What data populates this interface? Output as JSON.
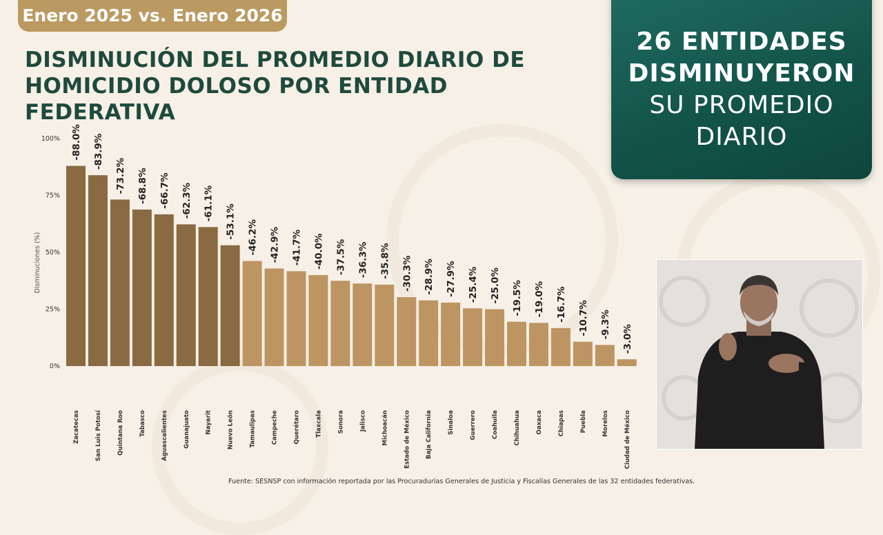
{
  "header": {
    "date_label": "Enero 2025 vs. Enero 2026",
    "title_line1": "DISMINUCIÓN DEL PROMEDIO DIARIO DE",
    "title_line2": "HOMICIDIO DOLOSO POR ENTIDAD FEDERATIVA"
  },
  "banner": {
    "line1": "26 ENTIDADES",
    "line2": "DISMINUYERON",
    "line3": "SU PROMEDIO",
    "line4": "DIARIO"
  },
  "footer": {
    "source": "Fuente: SESNSP con información reportada por las Procuradurías Generales de Justicia y Fiscalías Generales de las 32 entidades federativas."
  },
  "colors": {
    "dark_bar": "#8a6a42",
    "light_bar": "#bd9563",
    "title_green": "#1f4a3d",
    "banner_green": "#125248",
    "pill_gold": "#bb9a62"
  },
  "chart_data": {
    "type": "bar",
    "title": "DISMINUCIÓN DEL PROMEDIO DIARIO DE HOMICIDIO DOLOSO POR ENTIDAD FEDERATIVA",
    "xlabel": "",
    "ylabel": "Disminuciones (%)",
    "ylim": [
      0,
      100
    ],
    "yticks": [
      0,
      25,
      50,
      75,
      100
    ],
    "ytick_labels": [
      "0%",
      "25%",
      "50%",
      "75%",
      "100%"
    ],
    "grid": false,
    "categories": [
      "Zacatecas",
      "San Luis Potosí",
      "Quintana Roo",
      "Tabasco",
      "Aguascalientes",
      "Guanajuato",
      "Nayarit",
      "Nuevo León",
      "Tamaulipas",
      "Campeche",
      "Querétaro",
      "Tlaxcala",
      "Sonora",
      "Jalisco",
      "Michoacán",
      "Estado de México",
      "Baja California",
      "Sinaloa",
      "Guerrero",
      "Coahuila",
      "Chihuahua",
      "Oaxaca",
      "Chiapas",
      "Puebla",
      "Morelos",
      "Ciudad de México"
    ],
    "values": [
      88.0,
      83.9,
      73.2,
      68.8,
      66.7,
      62.3,
      61.1,
      53.1,
      46.2,
      42.9,
      41.7,
      40.0,
      37.5,
      36.3,
      35.8,
      30.3,
      28.9,
      27.9,
      25.4,
      25.0,
      19.5,
      19.0,
      16.7,
      10.7,
      9.3,
      3.0
    ],
    "data_labels": [
      "-88.0%",
      "-83.9%",
      "-73.2%",
      "-68.8%",
      "-66.7%",
      "-62.3%",
      "-61.1%",
      "-53.1%",
      "-46.2%",
      "-42.9%",
      "-41.7%",
      "-40.0%",
      "-37.5%",
      "-36.3%",
      "-35.8%",
      "-30.3%",
      "-28.9%",
      "-27.9%",
      "-25.4%",
      "-25.0%",
      "-19.5%",
      "-19.0%",
      "-16.7%",
      "-10.7%",
      "-9.3%",
      "-3.0%"
    ]
  }
}
